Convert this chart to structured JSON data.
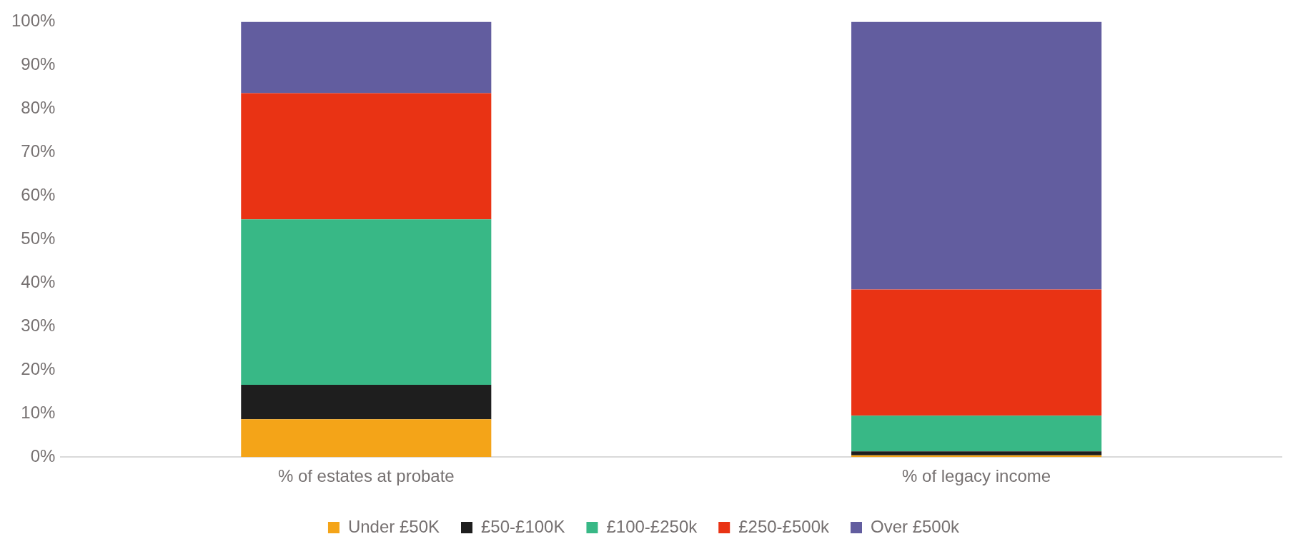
{
  "chart_data": {
    "type": "bar",
    "stacked": true,
    "categories": [
      "% of estates at probate",
      "% of legacy income"
    ],
    "series": [
      {
        "name": "Under £50K",
        "color": "#f4a418",
        "values": [
          8.7,
          0.4
        ]
      },
      {
        "name": "£50-£100K",
        "color": "#1e1e1e",
        "values": [
          7.9,
          0.9
        ]
      },
      {
        "name": "£100-£250k",
        "color": "#38b886",
        "values": [
          38.0,
          8.2
        ]
      },
      {
        "name": "£250-£500k",
        "color": "#e93314",
        "values": [
          29.0,
          29.0
        ]
      },
      {
        "name": "Over £500k",
        "color": "#625d9f",
        "values": [
          16.4,
          61.5
        ]
      }
    ],
    "ylim": [
      0,
      100
    ],
    "yticks": [
      {
        "value": 0,
        "label": "0%"
      },
      {
        "value": 10,
        "label": "10%"
      },
      {
        "value": 20,
        "label": "20%"
      },
      {
        "value": 30,
        "label": "30%"
      },
      {
        "value": 40,
        "label": "40%"
      },
      {
        "value": 50,
        "label": "50%"
      },
      {
        "value": 60,
        "label": "60%"
      },
      {
        "value": 70,
        "label": "70%"
      },
      {
        "value": 80,
        "label": "80%"
      },
      {
        "value": 90,
        "label": "90%"
      },
      {
        "value": 100,
        "label": "100%"
      }
    ],
    "grid": false,
    "legend": "bottom"
  }
}
